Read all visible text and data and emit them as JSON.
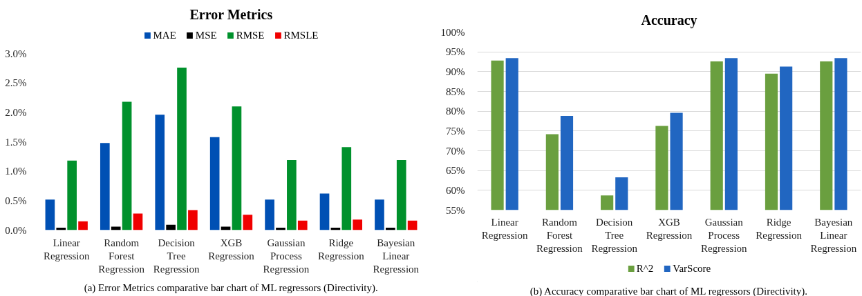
{
  "chart_data": [
    {
      "type": "bar",
      "title": "Error Metrics",
      "categories": [
        "Linear Regression",
        "Random Forest Regression",
        "Decision Tree Regression",
        "XGB Regression",
        "Gaussian Process Regression",
        "Ridge Regression",
        "Bayesian Linear Regression"
      ],
      "series": [
        {
          "name": "MAE",
          "color": "#0050b4",
          "values": [
            0.52,
            1.48,
            1.96,
            1.58,
            0.52,
            0.62,
            0.52
          ]
        },
        {
          "name": "MSE",
          "color": "#000000",
          "values": [
            0.04,
            0.06,
            0.09,
            0.06,
            0.04,
            0.04,
            0.04
          ]
        },
        {
          "name": "RMSE",
          "color": "#00912c",
          "values": [
            1.18,
            2.18,
            2.76,
            2.1,
            1.19,
            1.41,
            1.19
          ]
        },
        {
          "name": "RMSLE",
          "color": "#f00000",
          "values": [
            0.15,
            0.28,
            0.34,
            0.26,
            0.16,
            0.18,
            0.16
          ]
        }
      ],
      "ylim": [
        0,
        3
      ],
      "yticks": [
        {
          "value": 0,
          "label": "0.0%"
        },
        {
          "value": 0.5,
          "label": "0.5%"
        },
        {
          "value": 1,
          "label": "1.0%"
        },
        {
          "value": 1.5,
          "label": "1.5%"
        },
        {
          "value": 2,
          "label": "2.0%"
        },
        {
          "value": 2.5,
          "label": "2.5%"
        },
        {
          "value": 3,
          "label": "3.0%"
        }
      ],
      "grid": false,
      "legend": "top",
      "annotations": [
        "(a) Error Metrics comparative bar chart of ML regressors (Directivity)."
      ]
    },
    {
      "type": "bar",
      "title": "Accuracy",
      "categories": [
        "Linear Regression",
        "Random Forest Regression",
        "Decision Tree Regression",
        "XGB Regression",
        "Gaussian Process Regression",
        "Ridge Regression",
        "Bayesian Linear Regression"
      ],
      "series": [
        {
          "name": "R^2",
          "color": "#6a9f3f",
          "values": [
            92.8,
            74.2,
            58.7,
            76.3,
            92.6,
            89.5,
            92.6
          ]
        },
        {
          "name": "VarScore",
          "color": "#2166c1",
          "values": [
            93.4,
            78.8,
            63.3,
            79.6,
            93.4,
            91.3,
            93.4
          ]
        }
      ],
      "ylim": [
        55,
        100
      ],
      "yticks": [
        {
          "value": 55,
          "label": "55%"
        },
        {
          "value": 60,
          "label": "60%"
        },
        {
          "value": 65,
          "label": "65%"
        },
        {
          "value": 70,
          "label": "70%"
        },
        {
          "value": 75,
          "label": "75%"
        },
        {
          "value": 80,
          "label": "80%"
        },
        {
          "value": 85,
          "label": "85%"
        },
        {
          "value": 90,
          "label": "90%"
        },
        {
          "value": 95,
          "label": "95%"
        },
        {
          "value": 100,
          "label": "100%"
        }
      ],
      "grid": "y",
      "legend": "bottom",
      "annotations": [
        "(b) Accuracy comparative bar chart of ML regressors (Directivity)."
      ]
    }
  ]
}
